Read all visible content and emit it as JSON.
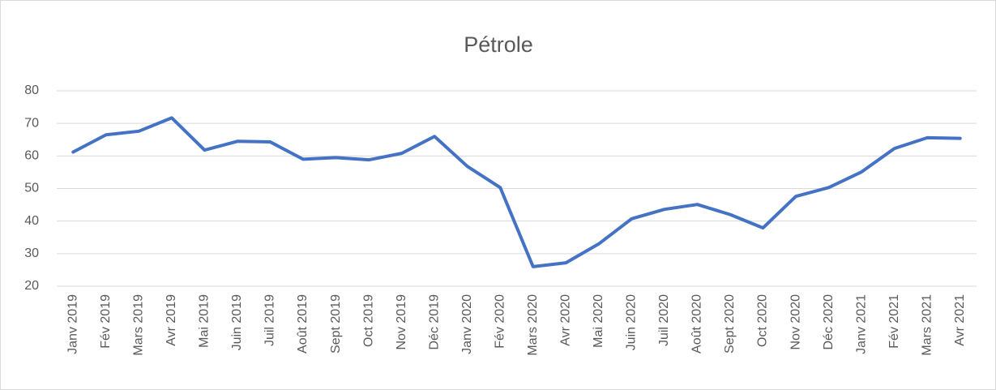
{
  "chart_data": {
    "type": "line",
    "title": "Pétrole",
    "categories": [
      "Janv 2019",
      "Fév 2019",
      "Mars 2019",
      "Avr 2019",
      "Mai 2019",
      "Juin 2019",
      "Juil 2019",
      "Août 2019",
      "Sept 2019",
      "Oct 2019",
      "Nov 2019",
      "Déc 2019",
      "Janv 2020",
      "Fév 2020",
      "Mars 2020",
      "Avr 2020",
      "Mai 2020",
      "Juin 2020",
      "Juil 2020",
      "Août 2020",
      "Sept 2020",
      "Oct 2020",
      "Nov 2020",
      "Déc 2020",
      "Janv 2021",
      "Fév 2021",
      "Mars 2021",
      "Avr 2021"
    ],
    "series": [
      {
        "color": "#4472c4",
        "values": [
          61.2,
          66.5,
          67.6,
          71.7,
          61.8,
          64.5,
          64.3,
          59,
          59.5,
          58.8,
          60.8,
          66,
          56.8,
          50.3,
          26,
          27.2,
          33,
          40.7,
          43.6,
          45.1,
          42,
          37.9,
          47.6,
          50.3,
          55.1,
          62.3,
          65.6,
          65.4
        ]
      }
    ],
    "ylim": [
      20,
      80
    ],
    "yticks": [
      20,
      30,
      40,
      50,
      60,
      70,
      80
    ],
    "grid": true
  }
}
